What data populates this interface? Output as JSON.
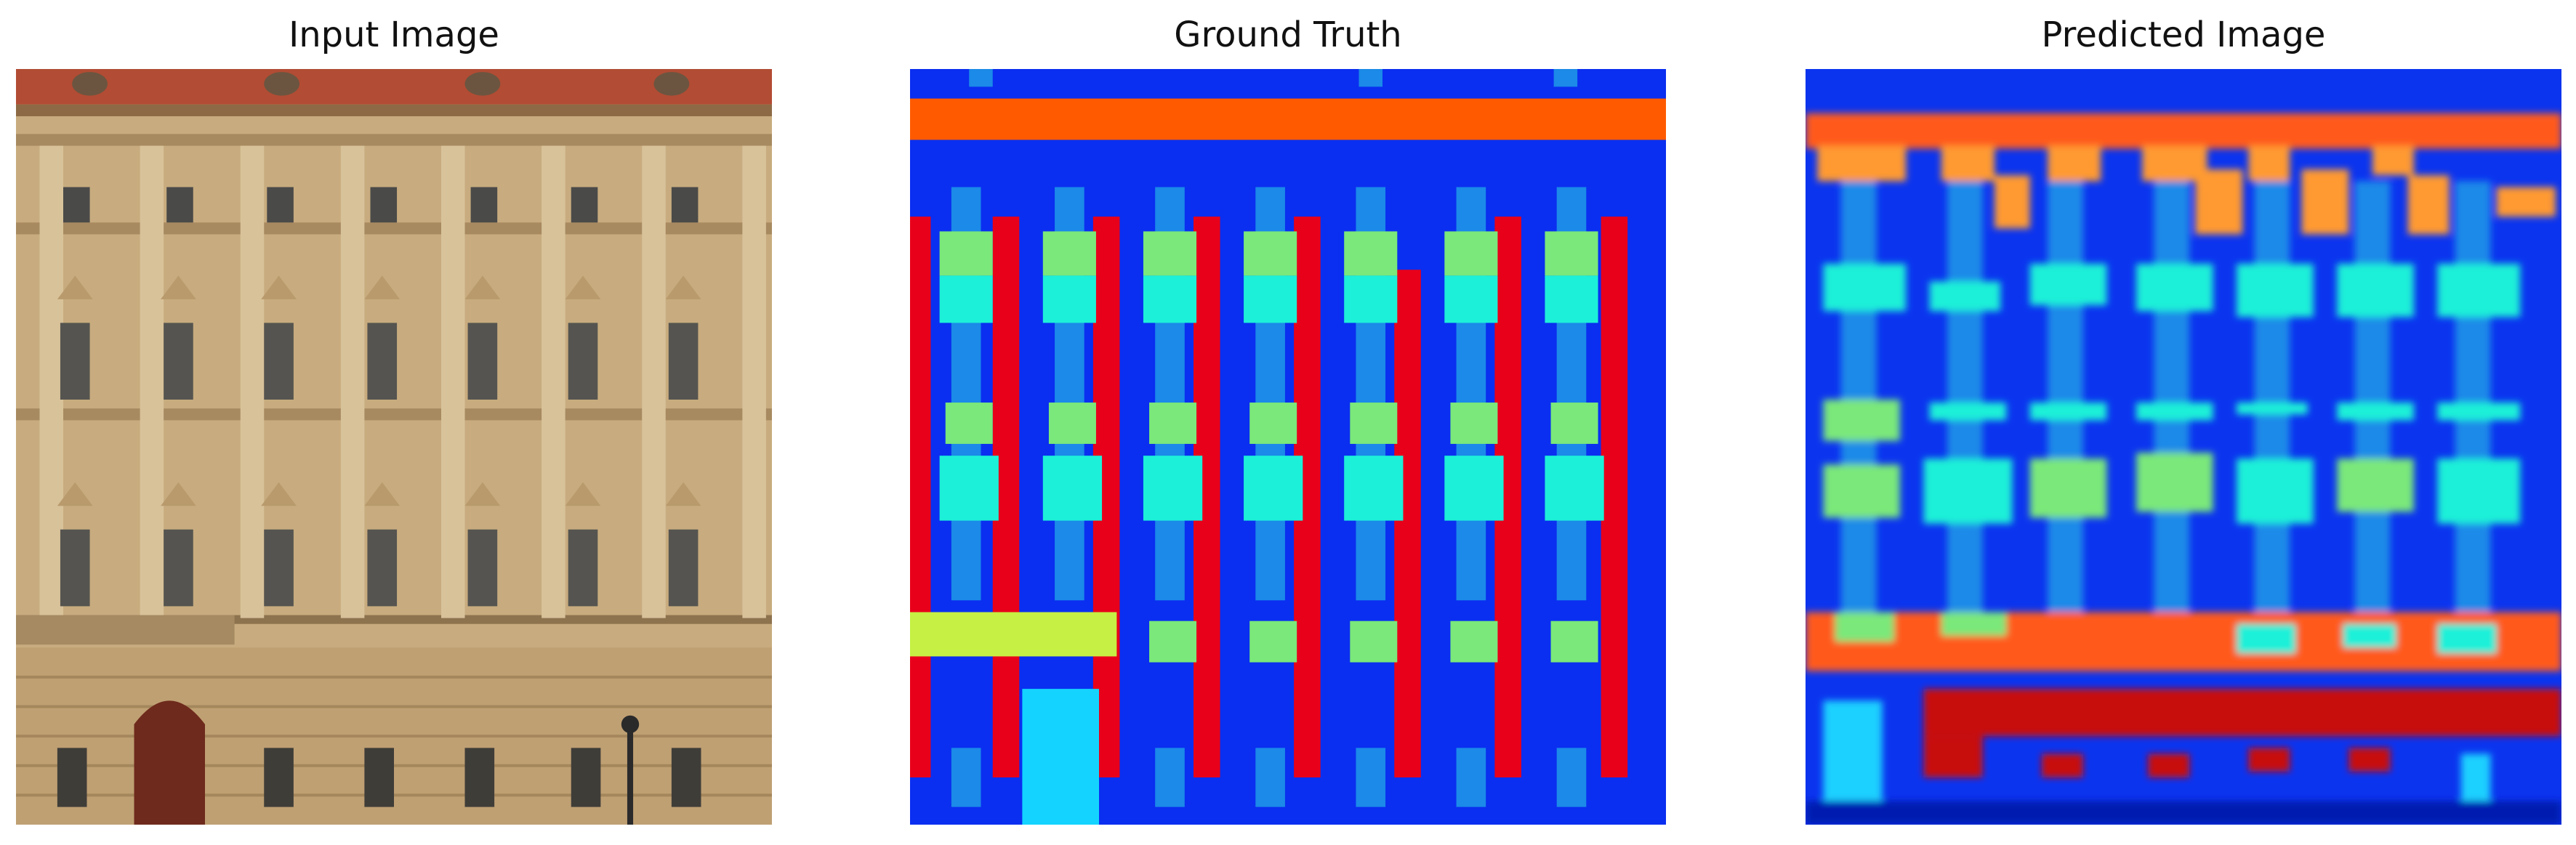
{
  "figure": {
    "panels": [
      {
        "title": "Input Image",
        "image": "facade-photo"
      },
      {
        "title": "Ground Truth",
        "image": "label-map"
      },
      {
        "title": "Predicted Image",
        "image": "predicted-label-map"
      }
    ]
  },
  "colors": {
    "background_blue": "#0a2ff0",
    "orange": "#ff5a00",
    "red": "#e8001a",
    "cyan": "#1df0d8",
    "green_cyan": "#7ae87a",
    "light_blue": "#1b8ae8",
    "yellow_green": "#c6f043",
    "sky": "#14d4ff",
    "facade": "#c9ad7e",
    "roof": "#b04a32"
  }
}
